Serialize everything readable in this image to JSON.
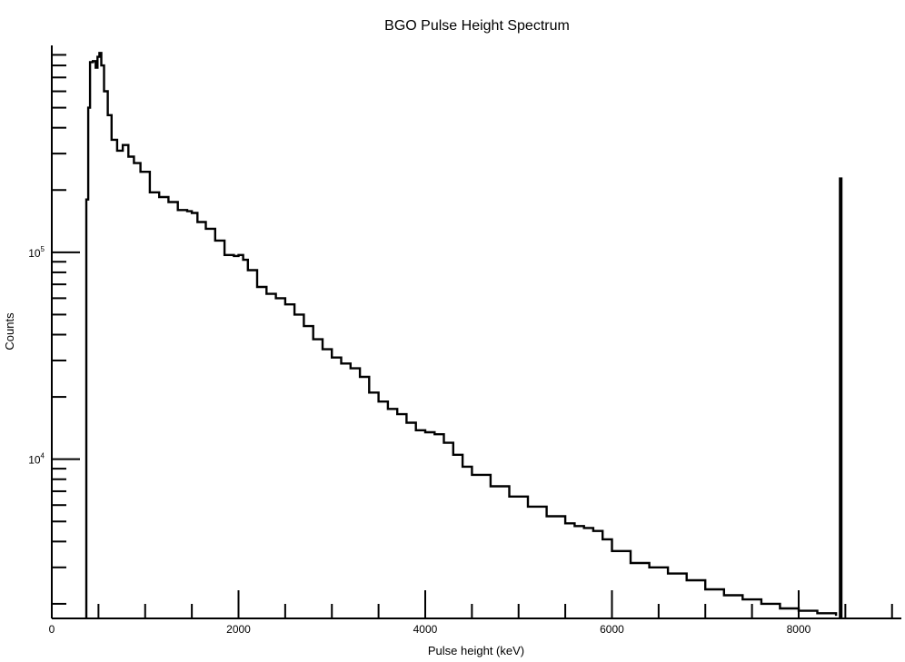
{
  "chart_data": {
    "type": "line",
    "title": "BGO Pulse Height Spectrum",
    "xlabel": "Pulse height (keV)",
    "ylabel": "Counts",
    "xlim": [
      0,
      9100
    ],
    "ylim": [
      1700,
      1000000
    ],
    "yscale": "log",
    "grid": false,
    "x_ticks": [
      {
        "value": 0,
        "label": "0"
      },
      {
        "value": 2000,
        "label": "2000"
      },
      {
        "value": 4000,
        "label": "4000"
      },
      {
        "value": 6000,
        "label": "6000"
      },
      {
        "value": 8000,
        "label": "8000"
      }
    ],
    "y_ticks": [
      {
        "value": 10000,
        "base": "10",
        "exp": "4"
      },
      {
        "value": 100000,
        "base": "10",
        "exp": "5"
      }
    ],
    "series": [
      {
        "x": [
          370,
          390,
          410,
          440,
          470,
          490,
          510,
          530,
          560,
          600,
          640,
          700,
          760,
          820,
          880,
          950,
          1050,
          1150,
          1250,
          1350,
          1450,
          1500,
          1560,
          1650,
          1750,
          1850,
          1950,
          2000,
          2050,
          2100,
          2200,
          2300,
          2400,
          2500,
          2600,
          2700,
          2800,
          2900,
          3000,
          3100,
          3200,
          3300,
          3400,
          3500,
          3600,
          3700,
          3800,
          3900,
          4000,
          4100,
          4200,
          4300,
          4400,
          4500,
          4700,
          4900,
          5100,
          5300,
          5500,
          5600,
          5700,
          5800,
          5900,
          6000,
          6200,
          6400,
          6600,
          6800,
          7000,
          7200,
          7400,
          7600,
          7800,
          8000,
          8200,
          8400
        ],
        "y": [
          180000,
          500000,
          830000,
          840000,
          780000,
          880000,
          920000,
          800000,
          600000,
          460000,
          350000,
          310000,
          330000,
          290000,
          270000,
          245000,
          195000,
          185000,
          175000,
          160000,
          158000,
          155000,
          140000,
          130000,
          114000,
          97000,
          96000,
          97000,
          92000,
          82000,
          68000,
          63000,
          60000,
          56000,
          50000,
          44000,
          38000,
          34000,
          31000,
          29000,
          27500,
          25000,
          21000,
          19000,
          17500,
          16500,
          15000,
          13800,
          13500,
          13200,
          12000,
          10500,
          9200,
          8400,
          7400,
          6600,
          5900,
          5300,
          4900,
          4750,
          4650,
          4500,
          4100,
          3600,
          3150,
          3000,
          2800,
          2600,
          2350,
          2200,
          2100,
          2000,
          1900,
          1850,
          1800,
          1750
        ]
      }
    ],
    "annotations": [
      {
        "type": "peak",
        "x": 8450,
        "y": 230000
      }
    ]
  }
}
